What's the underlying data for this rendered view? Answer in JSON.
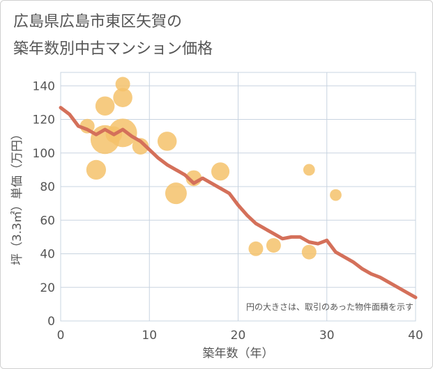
{
  "title_lines": [
    "広島県広島市東区矢賀の",
    "築年数別中古マンション価格"
  ],
  "chart_data": {
    "type": "scatter+line",
    "xlabel": "築年数（年）",
    "ylabel": "坪（3.3㎡）単価（万円）",
    "xlim": [
      0,
      40
    ],
    "ylim": [
      0,
      148
    ],
    "xticks": [
      0,
      10,
      20,
      30,
      40
    ],
    "yticks": [
      0,
      20,
      40,
      60,
      80,
      100,
      120,
      140
    ],
    "grid": true,
    "annotation": "円の大きさは、取引のあった物件面積を示す",
    "colors": {
      "bubble": "#f5c26b",
      "line": "#d4705a",
      "grid": "#c8d4e0",
      "text": "#555555"
    },
    "bubbles": [
      {
        "x": 3,
        "y": 116,
        "size": 1.1
      },
      {
        "x": 4,
        "y": 90,
        "size": 2.0
      },
      {
        "x": 5,
        "y": 128,
        "size": 1.9
      },
      {
        "x": 5,
        "y": 108,
        "size": 4.3
      },
      {
        "x": 6,
        "y": 111,
        "size": 1.4
      },
      {
        "x": 7,
        "y": 141,
        "size": 1.1
      },
      {
        "x": 7,
        "y": 133,
        "size": 1.9
      },
      {
        "x": 7,
        "y": 112,
        "size": 4.2
      },
      {
        "x": 9,
        "y": 104,
        "size": 1.4
      },
      {
        "x": 12,
        "y": 107,
        "size": 1.9
      },
      {
        "x": 13,
        "y": 76,
        "size": 2.4
      },
      {
        "x": 15,
        "y": 85,
        "size": 1.3
      },
      {
        "x": 18,
        "y": 89,
        "size": 1.7
      },
      {
        "x": 22,
        "y": 43,
        "size": 1.1
      },
      {
        "x": 24,
        "y": 45,
        "size": 1.1
      },
      {
        "x": 28,
        "y": 90,
        "size": 0.7
      },
      {
        "x": 28,
        "y": 41,
        "size": 1.1
      },
      {
        "x": 31,
        "y": 75,
        "size": 0.7
      }
    ],
    "line": {
      "x": [
        0,
        1,
        2,
        3,
        4,
        5,
        6,
        7,
        8,
        9,
        10,
        11,
        12,
        13,
        14,
        15,
        16,
        17,
        18,
        19,
        20,
        21,
        22,
        23,
        24,
        25,
        26,
        27,
        28,
        29,
        30,
        31,
        32,
        33,
        34,
        35,
        36,
        37,
        38,
        39,
        40
      ],
      "y": [
        127,
        123,
        116,
        114,
        111,
        114,
        111,
        114,
        110,
        107,
        102,
        97,
        93,
        90,
        87,
        82,
        85,
        82,
        79,
        76,
        69,
        63,
        58,
        55,
        52,
        49,
        50,
        50,
        47,
        46,
        48,
        41,
        38,
        35,
        31,
        28,
        26,
        23,
        20,
        17,
        14
      ]
    }
  }
}
